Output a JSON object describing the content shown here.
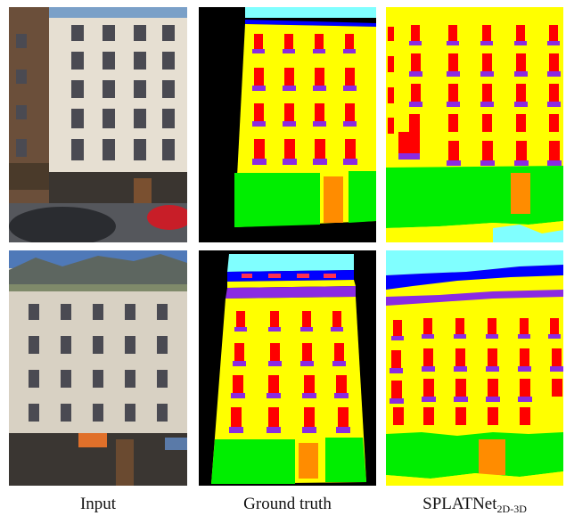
{
  "figure": {
    "captions": {
      "input": "Input",
      "ground_truth": "Ground truth",
      "method_main": "SPLATNet",
      "method_sub": "2D-3D"
    }
  },
  "colors": {
    "wall": "#ffff00",
    "window": "#ff0000",
    "balcony": "#8a2be2",
    "door": "#ff8c00",
    "shop": "#00ee00",
    "sky": "#80ffff",
    "roof": "#0000ff",
    "background": "#000000"
  }
}
